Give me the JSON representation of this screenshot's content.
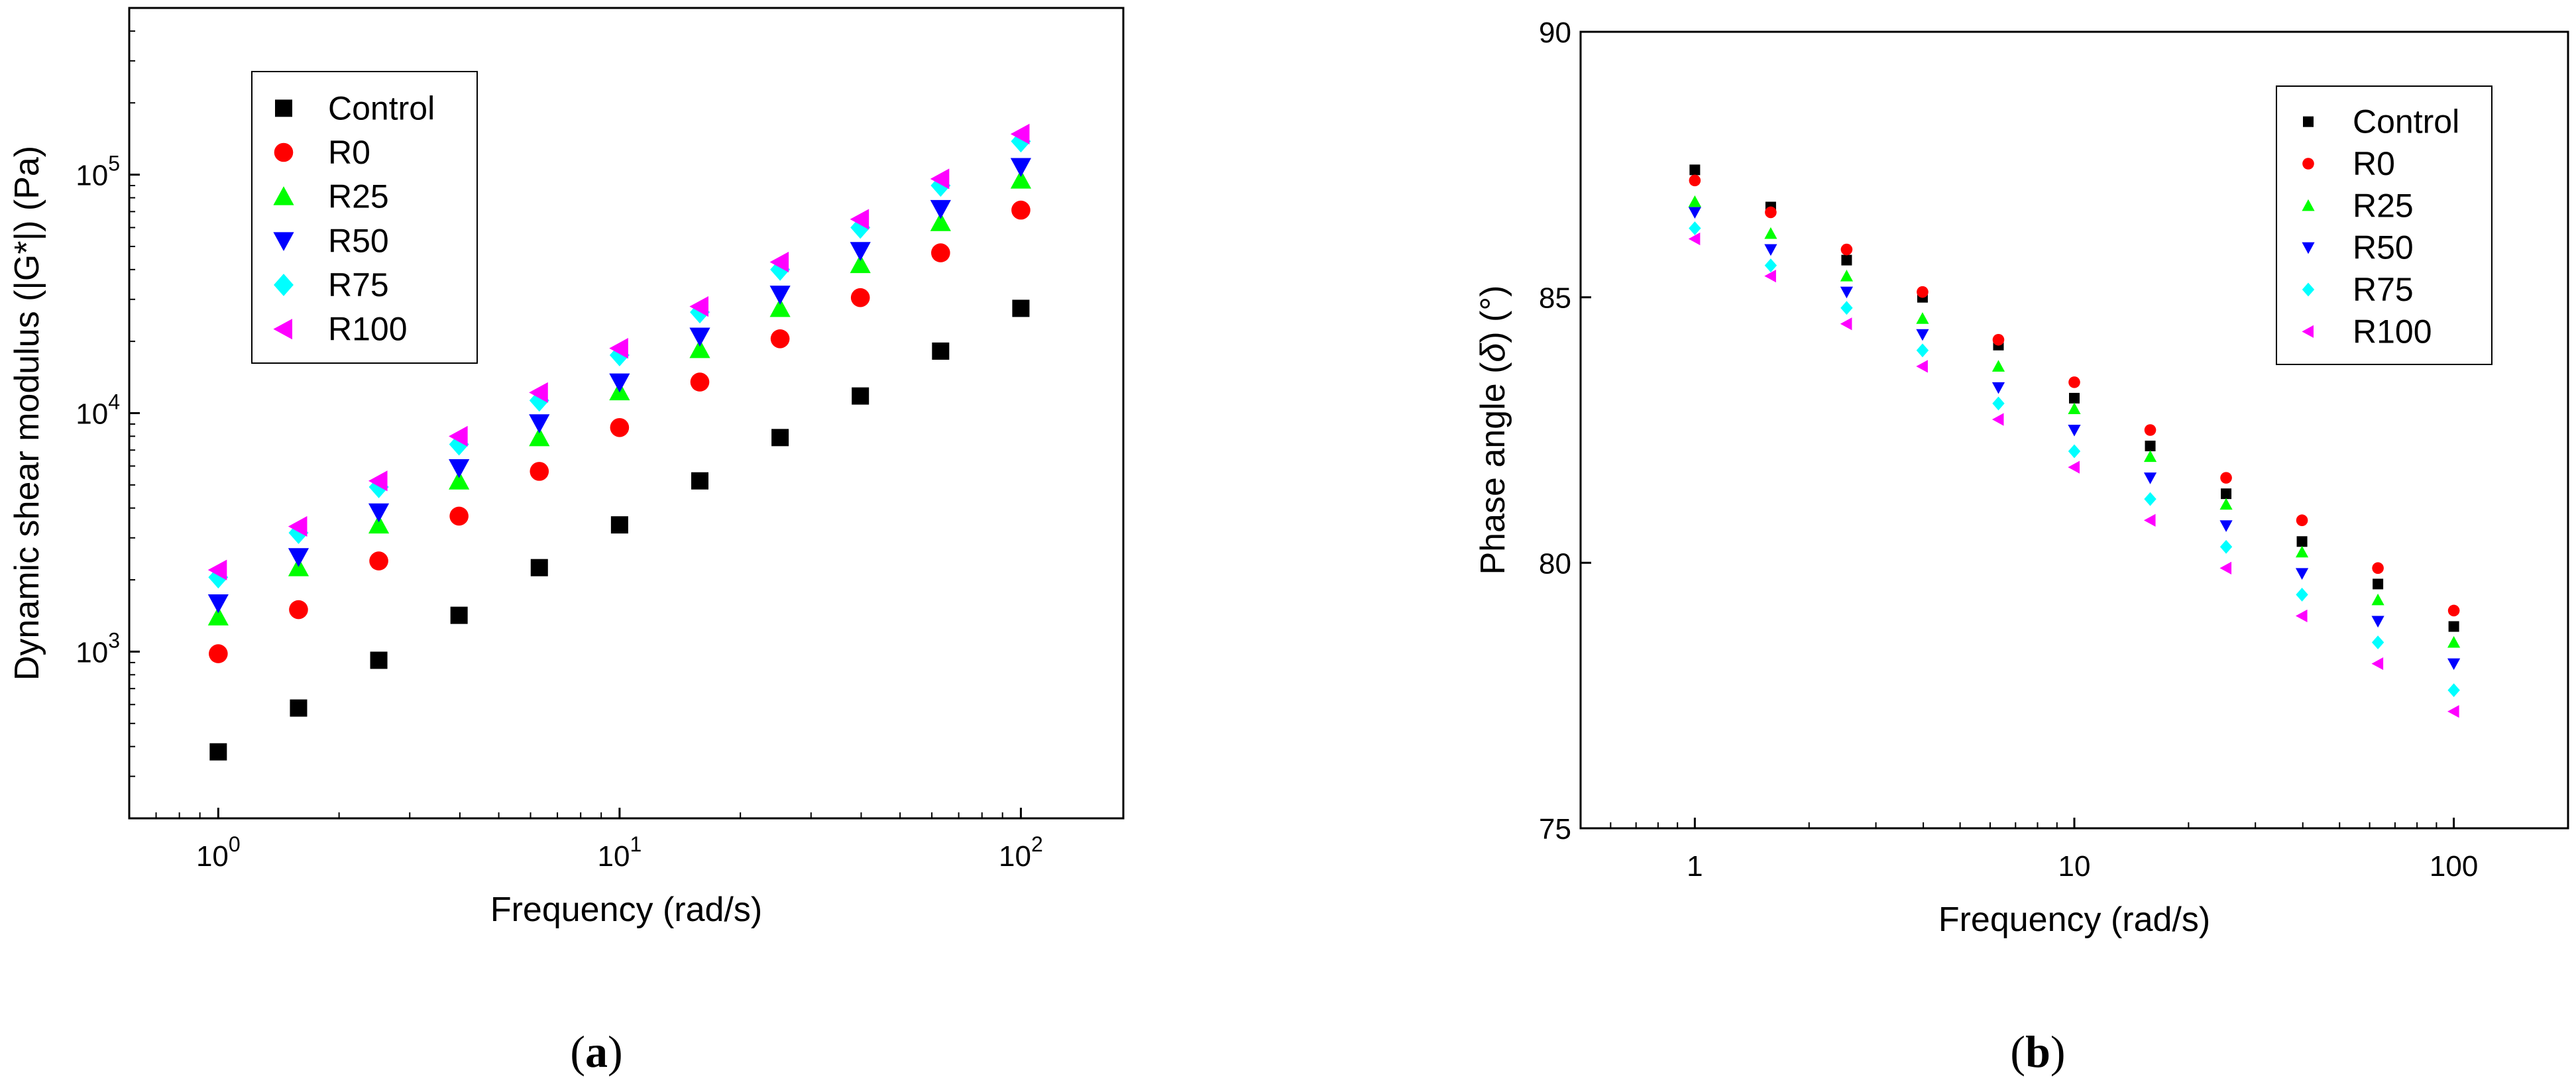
{
  "chart_data": [
    {
      "type": "scatter",
      "panel_label": "a",
      "xlabel": "Frequency (rad/s)",
      "ylabel": "Dynamic shear modulus (|G*|) (Pa)",
      "xscale": "log",
      "yscale": "log",
      "xlim": [
        0.6,
        180
      ],
      "ylim": [
        200,
        500000
      ],
      "x_ticks": [
        {
          "value": 1,
          "base": "10",
          "exp": "0"
        },
        {
          "value": 10,
          "base": "10",
          "exp": "1"
        },
        {
          "value": 100,
          "base": "10",
          "exp": "2"
        }
      ],
      "y_ticks": [
        {
          "value": 1000,
          "base": "10",
          "exp": "3"
        },
        {
          "value": 10000,
          "base": "10",
          "exp": "4"
        },
        {
          "value": 100000,
          "base": "10",
          "exp": "5"
        }
      ],
      "legend_position": "top-left",
      "x": [
        1,
        1.585,
        2.512,
        3.981,
        6.31,
        10,
        15.85,
        25.12,
        39.81,
        63.1,
        100
      ],
      "series": [
        {
          "name": "Control",
          "color": "#000000",
          "marker": "square",
          "values": [
            380,
            580,
            920,
            1420,
            2250,
            3400,
            5200,
            7900,
            11800,
            18200,
            27500
          ]
        },
        {
          "name": "R0",
          "color": "#ff0000",
          "marker": "circle",
          "values": [
            980,
            1500,
            2400,
            3700,
            5700,
            8700,
            13500,
            20500,
            30500,
            47000,
            71000
          ]
        },
        {
          "name": "R25",
          "color": "#00ff00",
          "marker": "triangle-up",
          "values": [
            1400,
            2250,
            3400,
            5200,
            7900,
            12300,
            18500,
            27500,
            42000,
            63000,
            95000
          ]
        },
        {
          "name": "R50",
          "color": "#0000ff",
          "marker": "triangle-down",
          "values": [
            1600,
            2500,
            3850,
            5900,
            9100,
            13500,
            21000,
            31500,
            48000,
            72000,
            108000
          ]
        },
        {
          "name": "R75",
          "color": "#00ffff",
          "marker": "diamond",
          "values": [
            2050,
            3150,
            4900,
            7400,
            11300,
            17500,
            26500,
            40000,
            60000,
            90000,
            138000
          ]
        },
        {
          "name": "R100",
          "color": "#ff00ff",
          "marker": "triangle-left",
          "values": [
            2200,
            3350,
            5200,
            8000,
            12200,
            18700,
            28000,
            43000,
            65000,
            96000,
            148000
          ]
        }
      ]
    },
    {
      "type": "scatter",
      "panel_label": "b",
      "xlabel": "Frequency (rad/s)",
      "ylabel_prefix": "Phase angle (",
      "ylabel_symbol": "δ",
      "ylabel_suffix": ") (°)",
      "xscale": "log",
      "yscale": "linear",
      "xlim": [
        0.5,
        200
      ],
      "ylim": [
        75,
        90
      ],
      "x_ticks": [
        {
          "value": 1,
          "label": "1"
        },
        {
          "value": 10,
          "label": "10"
        },
        {
          "value": 100,
          "label": "100"
        }
      ],
      "y_ticks": [
        {
          "value": 75,
          "label": "75"
        },
        {
          "value": 80,
          "label": "80"
        },
        {
          "value": 85,
          "label": "85"
        },
        {
          "value": 90,
          "label": "90"
        }
      ],
      "legend_position": "top-right",
      "x": [
        1,
        1.585,
        2.512,
        3.981,
        6.31,
        10,
        15.85,
        25.12,
        39.81,
        63.1,
        100
      ],
      "series": [
        {
          "name": "Control",
          "color": "#000000",
          "marker": "square",
          "values": [
            87.4,
            86.7,
            85.7,
            85.0,
            84.1,
            83.1,
            82.2,
            81.3,
            80.4,
            79.6,
            78.8
          ]
        },
        {
          "name": "R0",
          "color": "#ff0000",
          "marker": "circle",
          "values": [
            87.2,
            86.6,
            85.9,
            85.1,
            84.2,
            83.4,
            82.5,
            81.6,
            80.8,
            79.9,
            79.1
          ]
        },
        {
          "name": "R25",
          "color": "#00ff00",
          "marker": "triangle-up",
          "values": [
            86.8,
            86.2,
            85.4,
            84.6,
            83.7,
            82.9,
            82.0,
            81.1,
            80.2,
            79.3,
            78.5
          ]
        },
        {
          "name": "R50",
          "color": "#0000ff",
          "marker": "triangle-down",
          "values": [
            86.6,
            85.9,
            85.1,
            84.3,
            83.3,
            82.5,
            81.6,
            80.7,
            79.8,
            78.9,
            78.1
          ]
        },
        {
          "name": "R75",
          "color": "#00ffff",
          "marker": "diamond",
          "values": [
            86.3,
            85.6,
            84.8,
            84.0,
            83.0,
            82.1,
            81.2,
            80.3,
            79.4,
            78.5,
            77.6
          ]
        },
        {
          "name": "R100",
          "color": "#ff00ff",
          "marker": "triangle-left",
          "values": [
            86.1,
            85.4,
            84.5,
            83.7,
            82.7,
            81.8,
            80.8,
            79.9,
            79.0,
            78.1,
            77.2
          ]
        }
      ]
    }
  ]
}
